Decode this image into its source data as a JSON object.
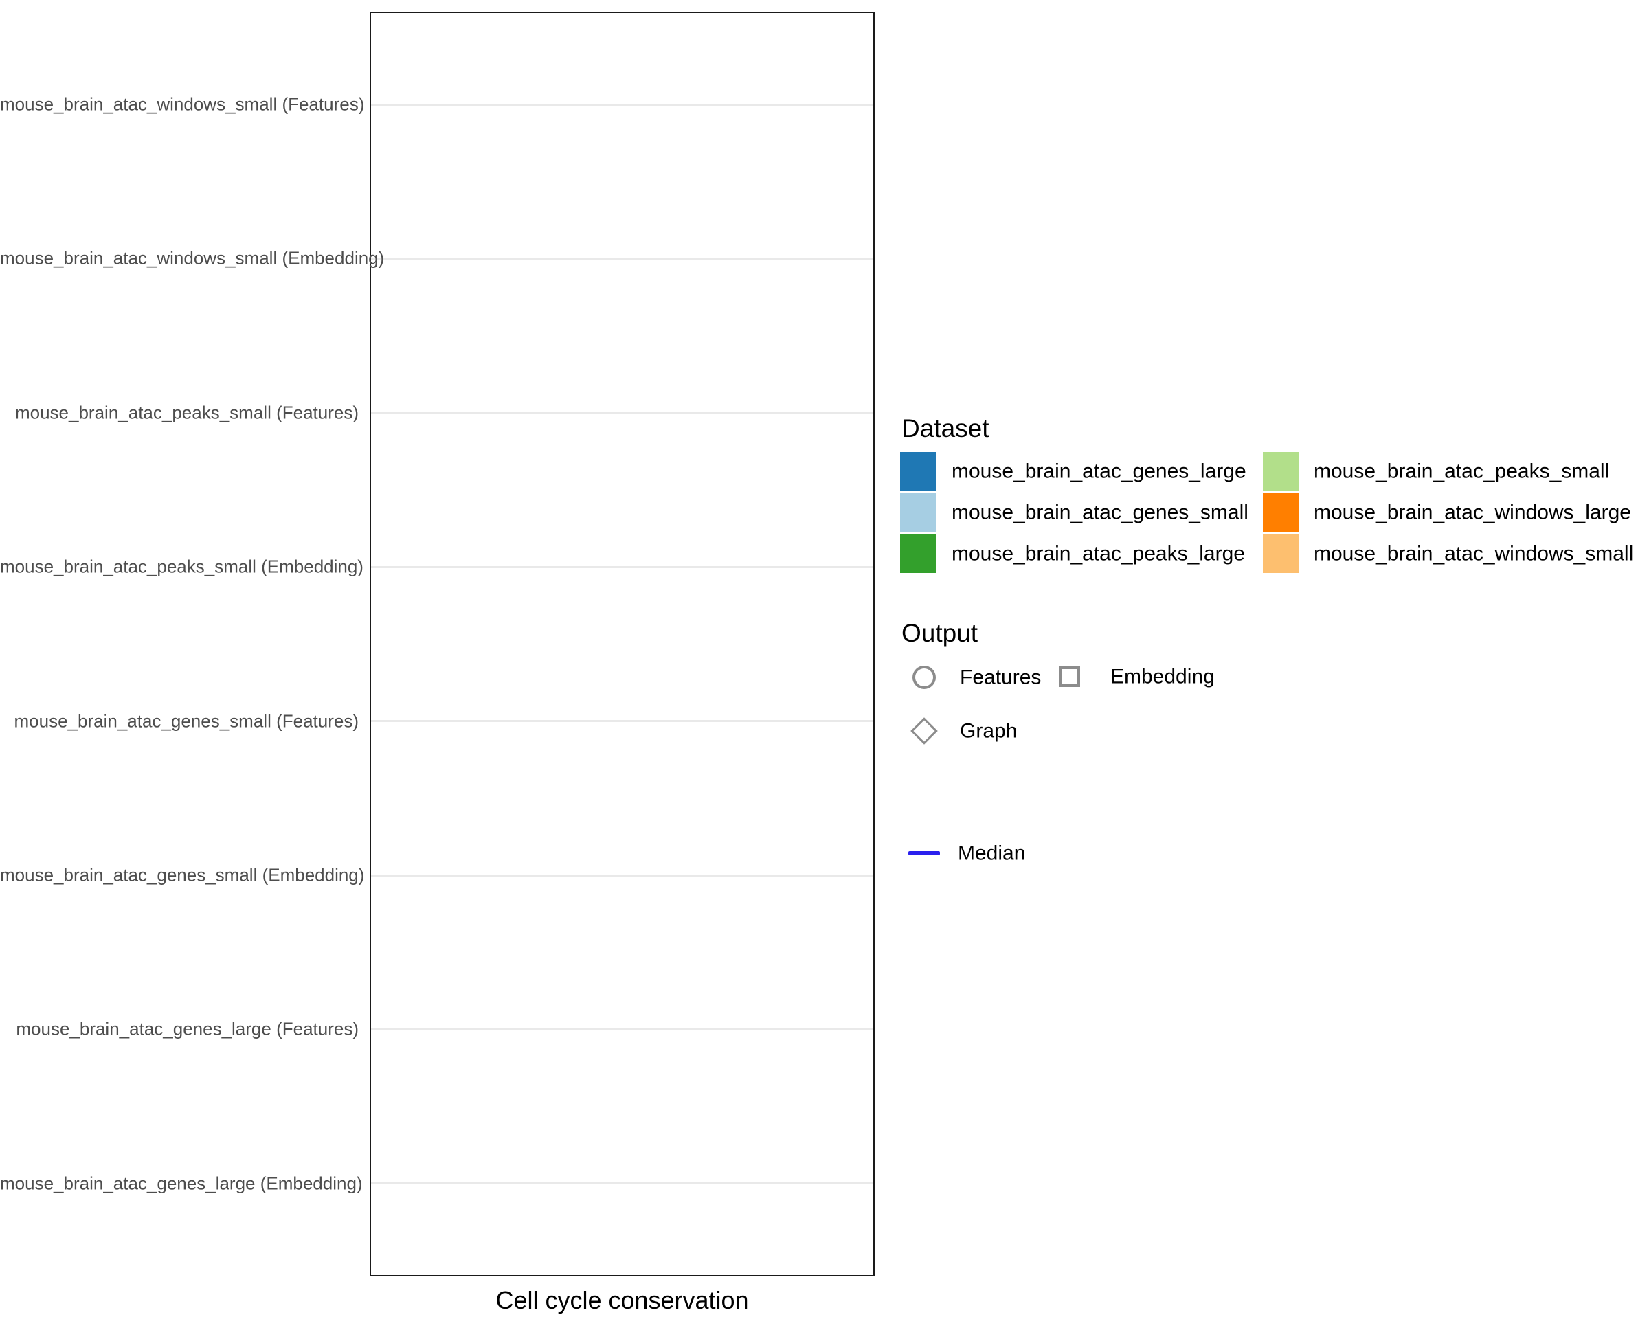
{
  "chart_data": {
    "type": "scatter",
    "title": "",
    "xlabel": "Cell cycle conservation",
    "ylabel": "",
    "categories": [
      "mouse_brain_atac_windows_small (Features)",
      "mouse_brain_atac_windows_small (Embedding)",
      "mouse_brain_atac_peaks_small (Features)",
      "mouse_brain_atac_peaks_small (Embedding)",
      "mouse_brain_atac_genes_small (Features)",
      "mouse_brain_atac_genes_small (Embedding)",
      "mouse_brain_atac_genes_large (Features)",
      "mouse_brain_atac_genes_large (Embedding)"
    ],
    "series": [],
    "x_tick_labels": [],
    "x_axis_ticks_visible": false,
    "grid": "horizontal major gridlines only",
    "legend_position": "right",
    "panel_empty": true
  },
  "figure": {
    "x_axis_title": "Cell cycle conservation"
  },
  "legend_dataset": {
    "title": "Dataset",
    "items": [
      {
        "label": "mouse_brain_atac_genes_large",
        "color": "#1f78b4"
      },
      {
        "label": "mouse_brain_atac_genes_small",
        "color": "#a6cee3"
      },
      {
        "label": "mouse_brain_atac_peaks_large",
        "color": "#33a02c"
      },
      {
        "label": "mouse_brain_atac_peaks_small",
        "color": "#b2df8a"
      },
      {
        "label": "mouse_brain_atac_windows_large",
        "color": "#ff7f00"
      },
      {
        "label": "mouse_brain_atac_windows_small",
        "color": "#fdbf6f"
      }
    ]
  },
  "legend_output": {
    "title": "Output",
    "items": [
      {
        "label": "Features",
        "shape": "circle"
      },
      {
        "label": "Embedding",
        "shape": "square"
      },
      {
        "label": "Graph",
        "shape": "diamond"
      }
    ],
    "shape_color": "#8c8c8c"
  },
  "legend_median": {
    "label": "Median",
    "line_color": "#2a20ee"
  },
  "colors": {
    "background": "#ffffff",
    "panel_border": "#1a1a1a",
    "gridline": "#e9e9e9",
    "axis_text": "#4d4d4d",
    "text": "#000000"
  }
}
